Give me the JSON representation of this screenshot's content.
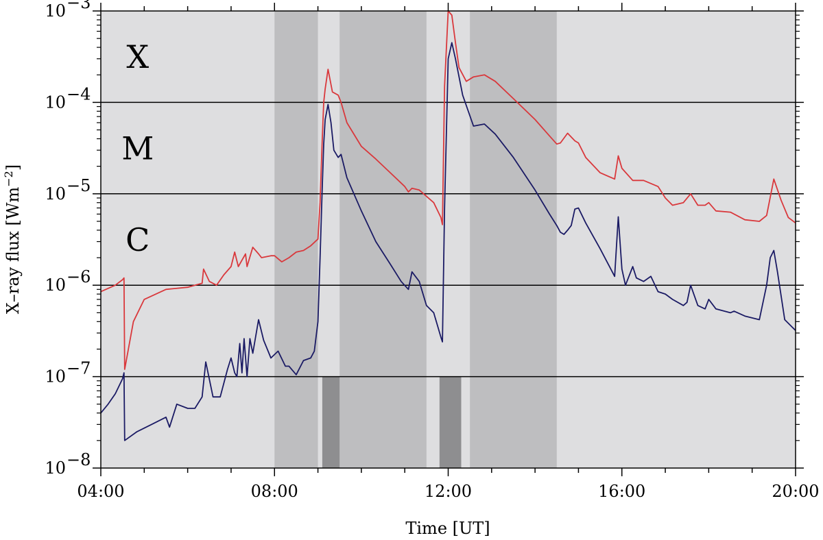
{
  "chart_data": {
    "type": "line",
    "title": "",
    "xlabel": "Time   [UT]",
    "ylabel": "X–ray flux   [Wm",
    "ylabel_sup": "−2",
    "ylabel_close": "]",
    "xlim": [
      "04:00",
      "20:00"
    ],
    "ylim": [
      1e-08,
      0.001
    ],
    "yscale": "log",
    "x_ticks": [
      "04:00",
      "08:00",
      "12:00",
      "16:00",
      "20:00"
    ],
    "y_ticks": [
      {
        "value": 1e-08,
        "base": "10",
        "exp": "−8"
      },
      {
        "value": 1e-07,
        "base": "10",
        "exp": "−7"
      },
      {
        "value": 1e-06,
        "base": "10",
        "exp": "−6"
      },
      {
        "value": 1e-05,
        "base": "10",
        "exp": "−5"
      },
      {
        "value": 0.0001,
        "base": "10",
        "exp": "−4"
      },
      {
        "value": 0.001,
        "base": "10",
        "exp": "−3"
      }
    ],
    "class_lines": [
      1e-07,
      1e-06,
      1e-05,
      0.0001
    ],
    "class_labels": [
      {
        "text": "X",
        "x": "04:32",
        "y": 0.00032
      },
      {
        "text": "M",
        "x": "04:32",
        "y": 3.2e-05
      },
      {
        "text": "C",
        "x": "04:32",
        "y": 3.2e-06
      }
    ],
    "shaded_intervals": [
      {
        "start": "08:00",
        "end": "09:00",
        "level": "medium",
        "y_from": 1e-08,
        "y_to": 0.001
      },
      {
        "start": "09:30",
        "end": "11:30",
        "level": "medium",
        "y_from": 1e-08,
        "y_to": 0.001
      },
      {
        "start": "12:30",
        "end": "14:30",
        "level": "medium",
        "y_from": 1e-08,
        "y_to": 0.001
      },
      {
        "start": "09:06",
        "end": "09:30",
        "level": "dark",
        "y_from": 1e-08,
        "y_to": 1e-07
      },
      {
        "start": "11:48",
        "end": "12:18",
        "level": "dark",
        "y_from": 1e-08,
        "y_to": 1e-07
      }
    ],
    "colors": {
      "background": "#dedee0",
      "shade_medium": "#bebec0",
      "shade_dark": "#8e8e90",
      "series_long": "#d9383c",
      "series_short": "#1a1a64"
    },
    "series": [
      {
        "key": "long",
        "x": [
          "04:00",
          "04:20",
          "04:30",
          "04:32",
          "04:33",
          "04:45",
          "05:00",
          "05:30",
          "06:00",
          "06:10",
          "06:20",
          "06:22",
          "06:30",
          "06:40",
          "06:50",
          "07:00",
          "07:05",
          "07:10",
          "07:20",
          "07:22",
          "07:30",
          "07:38",
          "07:42",
          "07:55",
          "08:00",
          "08:10",
          "08:20",
          "08:30",
          "08:40",
          "08:50",
          "09:00",
          "09:03",
          "09:06",
          "09:08",
          "09:10",
          "09:14",
          "09:20",
          "09:28",
          "09:32",
          "09:40",
          "10:00",
          "10:20",
          "10:40",
          "11:00",
          "11:05",
          "11:10",
          "11:20",
          "11:40",
          "11:50",
          "11:52",
          "11:55",
          "12:00",
          "12:05",
          "12:10",
          "12:15",
          "12:25",
          "12:35",
          "12:50",
          "13:05",
          "13:30",
          "14:00",
          "14:20",
          "14:30",
          "14:35",
          "14:45",
          "14:55",
          "15:00",
          "15:10",
          "15:30",
          "15:50",
          "15:55",
          "16:00",
          "16:15",
          "16:30",
          "16:50",
          "17:00",
          "17:10",
          "17:25",
          "17:35",
          "17:45",
          "17:55",
          "18:00",
          "18:10",
          "18:30",
          "18:50",
          "19:10",
          "19:20",
          "19:30",
          "19:40",
          "19:50",
          "20:00"
        ],
        "y": [
          8.5e-07,
          1e-06,
          1.15e-06,
          1.2e-06,
          1.2e-07,
          4e-07,
          7e-07,
          9e-07,
          9.5e-07,
          1e-06,
          1.05e-06,
          1.5e-06,
          1.1e-06,
          1e-06,
          1.3e-06,
          1.6e-06,
          2.3e-06,
          1.6e-06,
          2.2e-06,
          1.6e-06,
          2.6e-06,
          2.2e-06,
          2e-06,
          2.1e-06,
          2.1e-06,
          1.8e-06,
          2e-06,
          2.3e-06,
          2.4e-06,
          2.7e-06,
          3.2e-06,
          8e-06,
          4e-05,
          0.0001,
          0.00014,
          0.00023,
          0.00013,
          0.00012,
          0.0001,
          6e-05,
          3.3e-05,
          2.4e-05,
          1.7e-05,
          1.2e-05,
          1.05e-05,
          1.15e-05,
          1.1e-05,
          8e-06,
          5.5e-06,
          4.6e-06,
          0.00015,
          0.001,
          0.0009,
          0.00045,
          0.00024,
          0.00017,
          0.00019,
          0.0002,
          0.00017,
          0.00011,
          6.5e-05,
          4.3e-05,
          3.5e-05,
          3.6e-05,
          4.6e-05,
          3.8e-05,
          3.6e-05,
          2.5e-05,
          1.7e-05,
          1.45e-05,
          2.6e-05,
          1.9e-05,
          1.4e-05,
          1.4e-05,
          1.2e-05,
          9e-06,
          7.5e-06,
          8e-06,
          1e-05,
          7.5e-06,
          7.5e-06,
          8e-06,
          6.5e-06,
          6.3e-06,
          5.2e-06,
          5e-06,
          5.8e-06,
          1.45e-05,
          8.5e-06,
          5.5e-06,
          4.8e-06
        ]
      },
      {
        "key": "short",
        "x": [
          "04:00",
          "04:10",
          "04:20",
          "04:30",
          "04:32",
          "04:33",
          "04:50",
          "05:10",
          "05:30",
          "05:35",
          "05:45",
          "06:00",
          "06:10",
          "06:20",
          "06:25",
          "06:35",
          "06:45",
          "06:55",
          "07:00",
          "07:05",
          "07:08",
          "07:12",
          "07:15",
          "07:18",
          "07:22",
          "07:26",
          "07:30",
          "07:38",
          "07:45",
          "07:55",
          "08:05",
          "08:15",
          "08:20",
          "08:30",
          "08:40",
          "08:50",
          "08:55",
          "09:00",
          "09:03",
          "09:06",
          "09:08",
          "09:10",
          "09:14",
          "09:18",
          "09:22",
          "09:28",
          "09:32",
          "09:40",
          "10:00",
          "10:20",
          "10:40",
          "10:55",
          "11:05",
          "11:10",
          "11:20",
          "11:30",
          "11:40",
          "11:50",
          "11:52",
          "11:55",
          "12:00",
          "12:05",
          "12:10",
          "12:20",
          "12:35",
          "12:50",
          "13:05",
          "13:30",
          "14:00",
          "14:20",
          "14:30",
          "14:35",
          "14:40",
          "14:45",
          "14:50",
          "14:55",
          "15:00",
          "15:10",
          "15:30",
          "15:50",
          "15:55",
          "16:00",
          "16:05",
          "16:15",
          "16:20",
          "16:30",
          "16:40",
          "16:50",
          "17:00",
          "17:10",
          "17:25",
          "17:30",
          "17:35",
          "17:45",
          "17:55",
          "18:00",
          "18:10",
          "18:30",
          "18:35",
          "18:50",
          "19:10",
          "19:20",
          "19:25",
          "19:30",
          "19:35",
          "19:45",
          "19:55",
          "20:00"
        ],
        "y": [
          4e-08,
          5e-08,
          6.5e-08,
          9.5e-08,
          1.1e-07,
          2e-08,
          2.5e-08,
          3e-08,
          3.6e-08,
          2.8e-08,
          5e-08,
          4.5e-08,
          4.5e-08,
          6e-08,
          1.45e-07,
          6e-08,
          6e-08,
          1.2e-07,
          1.6e-07,
          1.1e-07,
          1e-07,
          2.3e-07,
          1.1e-07,
          2.6e-07,
          1e-07,
          2.6e-07,
          1.8e-07,
          4.2e-07,
          2.5e-07,
          1.6e-07,
          1.9e-07,
          1.3e-07,
          1.3e-07,
          1.05e-07,
          1.5e-07,
          1.6e-07,
          1.9e-07,
          4e-07,
          2e-06,
          1.2e-05,
          3.5e-05,
          6.5e-05,
          9.5e-05,
          6e-05,
          3e-05,
          2.5e-05,
          2.7e-05,
          1.5e-05,
          6.5e-06,
          3e-06,
          1.7e-06,
          1.1e-06,
          9e-07,
          1.4e-06,
          1.1e-06,
          6e-07,
          5e-07,
          2.7e-07,
          2.4e-07,
          7e-06,
          0.0003,
          0.00045,
          0.0003,
          0.00012,
          5.5e-05,
          5.8e-05,
          4.5e-05,
          2.5e-05,
          1.1e-05,
          6e-06,
          4.5e-06,
          3.8e-06,
          3.6e-06,
          4e-06,
          4.5e-06,
          6.8e-06,
          7e-06,
          4.8e-06,
          2.5e-06,
          1.25e-06,
          5.6e-06,
          1.5e-06,
          1e-06,
          1.6e-06,
          1.2e-06,
          1.1e-06,
          1.25e-06,
          8.5e-07,
          8e-07,
          7e-07,
          6e-07,
          6.5e-07,
          1e-06,
          6e-07,
          5.5e-07,
          7e-07,
          5.5e-07,
          5e-07,
          5.2e-07,
          4.6e-07,
          4.2e-07,
          1e-06,
          2e-06,
          2.4e-06,
          1.4e-06,
          4.2e-07,
          3.5e-07,
          3.2e-07
        ]
      }
    ]
  }
}
